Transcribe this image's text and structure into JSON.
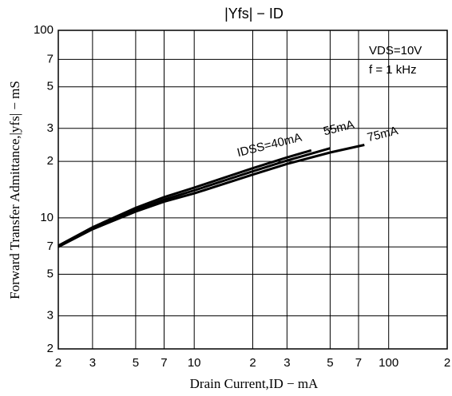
{
  "chart_data": {
    "type": "line",
    "title": "|Yfs|  −  ID",
    "x_label": "Drain Current,ID − mA",
    "y_label": "Forward Transfer Admittance,|yfs| − mS",
    "annotations": [
      "VDS=10V",
      "f = 1 kHz"
    ],
    "log_x": true,
    "log_y": true,
    "grid": true,
    "xlim": [
      2,
      200
    ],
    "xticks": [
      2,
      3,
      5,
      7,
      10,
      {
        "value": 20,
        "label": "2"
      },
      {
        "value": 30,
        "label": "3"
      },
      {
        "value": 50,
        "label": "5"
      },
      {
        "value": 70,
        "label": "7"
      },
      100,
      {
        "value": 200,
        "label": "2"
      }
    ],
    "ylim": [
      2,
      100
    ],
    "yticks": [
      2,
      3,
      5,
      7,
      10,
      {
        "value": 20,
        "label": "2"
      },
      {
        "value": 30,
        "label": "3"
      },
      {
        "value": 50,
        "label": "5"
      },
      {
        "value": 70,
        "label": "7"
      },
      100
    ],
    "series": [
      {
        "name": "IDSS=40mA",
        "color": "#000000",
        "x": [
          2,
          3,
          5,
          7,
          10,
          20,
          30,
          40
        ],
        "values": [
          7.1,
          8.9,
          11.3,
          12.9,
          14.5,
          18.4,
          21.0,
          22.9
        ]
      },
      {
        "name": "55mA",
        "color": "#000000",
        "x": [
          2,
          3,
          5,
          7,
          10,
          20,
          30,
          50
        ],
        "values": [
          7.1,
          8.8,
          11.0,
          12.5,
          14.0,
          17.7,
          20.2,
          23.5
        ]
      },
      {
        "name": "75mA",
        "color": "#000000",
        "x": [
          2,
          3,
          5,
          7,
          10,
          20,
          30,
          50,
          75
        ],
        "values": [
          7.0,
          8.7,
          10.8,
          12.2,
          13.5,
          17.0,
          19.4,
          22.3,
          24.5
        ]
      }
    ]
  }
}
